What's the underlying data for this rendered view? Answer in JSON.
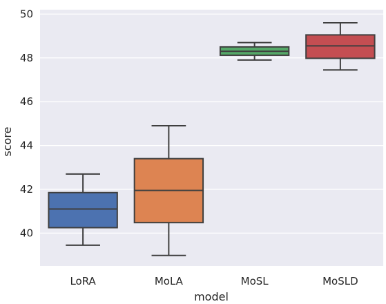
{
  "chart_data": {
    "type": "box",
    "xlabel": "model",
    "ylabel": "score",
    "ylim": [
      38.5,
      50.2
    ],
    "yticks": [
      40,
      42,
      44,
      46,
      48,
      50
    ],
    "ytick_labels": [
      "40",
      "42",
      "44",
      "46",
      "48",
      "50"
    ],
    "grid": true,
    "categories": [
      "LoRA",
      "MoLA",
      "MoSL",
      "MoSLD"
    ],
    "boxes": [
      {
        "label": "LoRA",
        "whisker_low": 39.45,
        "q1": 40.25,
        "median": 41.1,
        "q3": 41.85,
        "whisker_high": 42.7,
        "color": "#4c72b0"
      },
      {
        "label": "MoLA",
        "whisker_low": 38.98,
        "q1": 40.48,
        "median": 41.95,
        "q3": 43.4,
        "whisker_high": 44.9,
        "color": "#dd8452"
      },
      {
        "label": "MoSL",
        "whisker_low": 47.9,
        "q1": 48.12,
        "median": 48.3,
        "q3": 48.5,
        "whisker_high": 48.7,
        "color": "#55a868"
      },
      {
        "label": "MoSLD",
        "whisker_low": 47.45,
        "q1": 47.98,
        "median": 48.55,
        "q3": 49.05,
        "whisker_high": 49.6,
        "color": "#c44e52"
      }
    ],
    "colors": {
      "background": "#eaeaf2",
      "grid": "#ffffff",
      "line": "#3f3f3f"
    }
  }
}
